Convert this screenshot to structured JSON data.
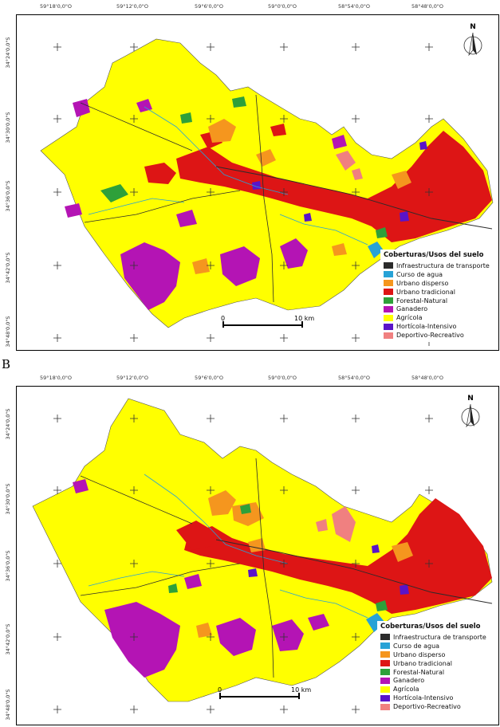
{
  "panels": [
    {
      "letter": "",
      "top_labels": [
        "59°18'0,0\"O",
        "59°12'0,0\"O",
        "59°6'0,0\"O",
        "59°0'0,0\"O",
        "58°54'0,0\"O",
        "58°48'0,0\"O"
      ],
      "left_labels": [
        "34°24'0,0\"S",
        "34°30'0,0\"S",
        "34°36'0,0\"S",
        "34°42'0,0\"S",
        "34°48'0,0\"S"
      ],
      "legend_title": "Coberturas/Usos del suelo",
      "scale": {
        "start": "0",
        "end": "10 km"
      },
      "north": "N"
    },
    {
      "letter": "B",
      "top_labels": [
        "59°18'0,0\"O",
        "59°12'0,0\"O",
        "59°6'0,0\"O",
        "59°0'0,0\"O",
        "58°54'0,0\"O",
        "58°48'0,0\"O"
      ],
      "left_labels": [
        "34°24'0,0\"S",
        "34°30'0,0\"S",
        "34°36'0,0\"S",
        "34°42'0,0\"S",
        "34°48'0,0\"S"
      ],
      "legend_title": "Coberturas/Usos del suelo",
      "scale": {
        "start": "0",
        "end": "10 km"
      },
      "north": "N"
    }
  ],
  "legend_items": [
    {
      "label": "Infraestructura de transporte",
      "color": "#2b2b2b"
    },
    {
      "label": "Curso de agua",
      "color": "#27a2d6"
    },
    {
      "label": "Urbano disperso",
      "color": "#f5961e"
    },
    {
      "label": "Urbano tradicional",
      "color": "#dd1515"
    },
    {
      "label": "Forestal-Natural",
      "color": "#2ea03a"
    },
    {
      "label": "Ganadero",
      "color": "#b414b4"
    },
    {
      "label": "Agrícola",
      "color": "#ffff00"
    },
    {
      "label": "Hortícola-Intensivo",
      "color": "#5a14c8"
    },
    {
      "label": "Deportivo-Recreativo",
      "color": "#f08080"
    }
  ]
}
